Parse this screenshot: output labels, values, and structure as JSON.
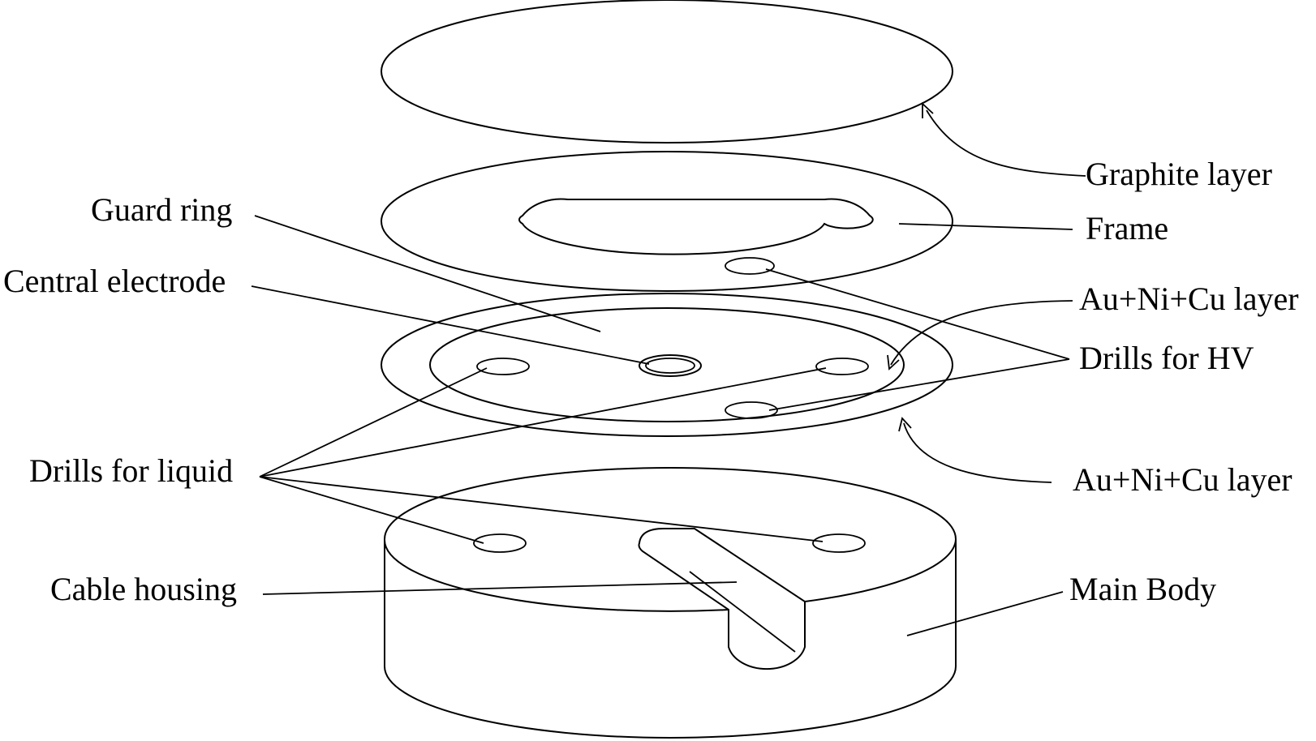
{
  "labels": {
    "graphite_layer": "Graphite layer",
    "frame": "Frame",
    "au_ni_cu_layer_top": "Au+Ni+Cu layer",
    "drills_for_hv": "Drills for HV",
    "au_ni_cu_layer_bottom": "Au+Ni+Cu layer",
    "main_body": "Main Body",
    "guard_ring": "Guard ring",
    "central_electrode": "Central electrode",
    "drills_for_liquid": "Drills for liquid",
    "cable_housing": "Cable housing"
  },
  "colors": {
    "line": "#000000",
    "background": "#ffffff"
  }
}
